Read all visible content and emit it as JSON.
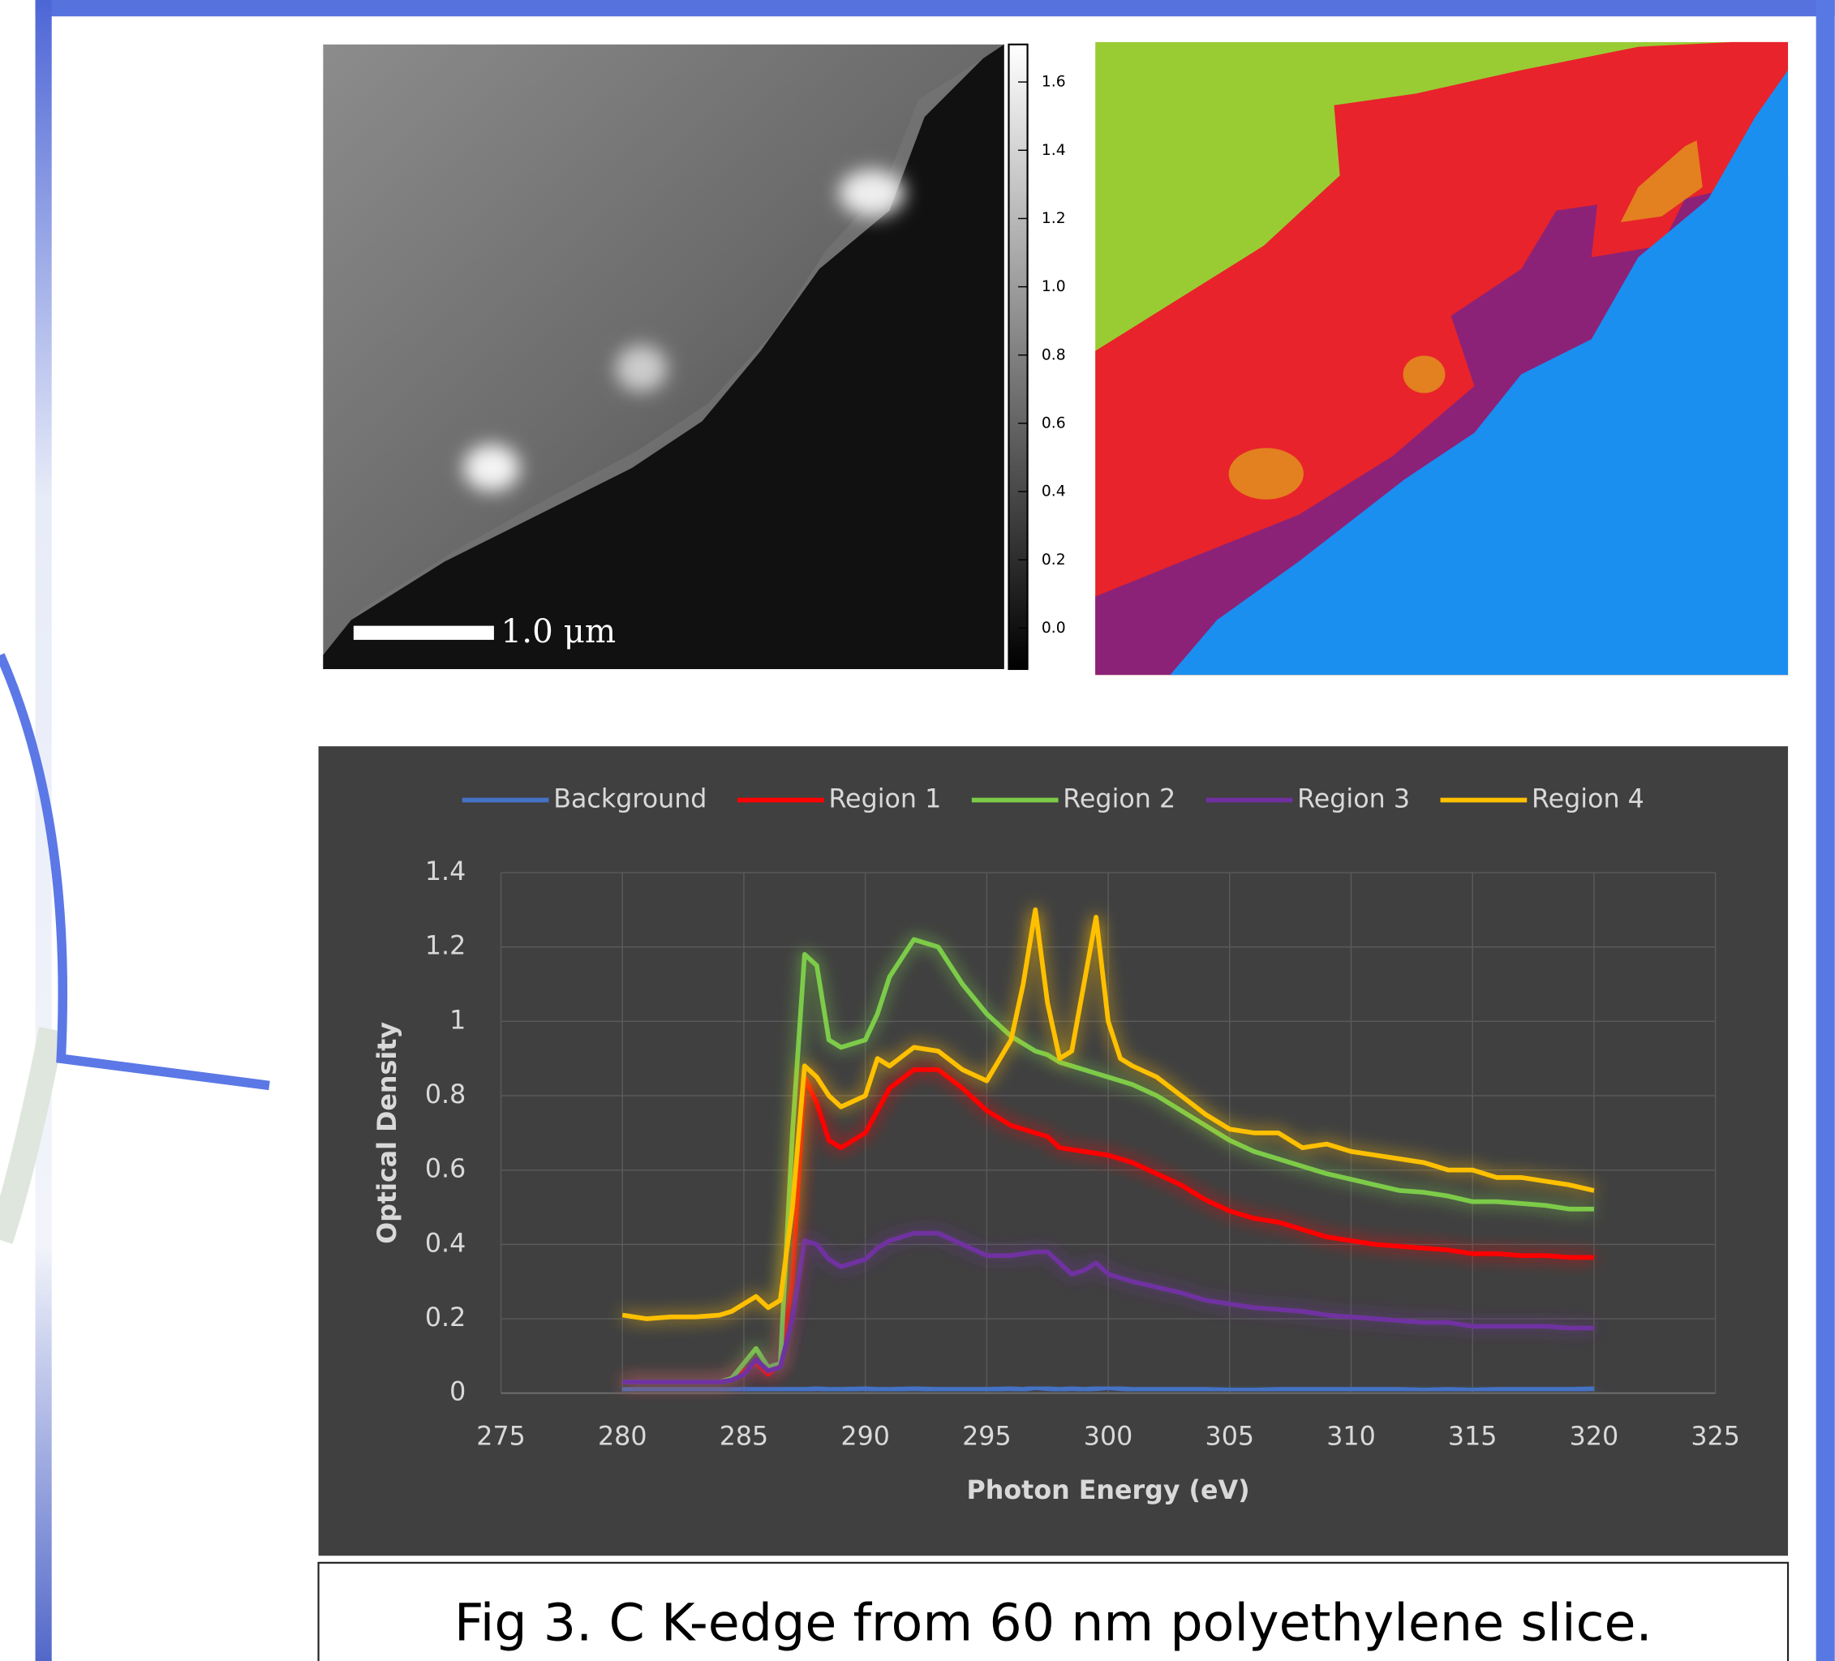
{
  "colorbar": {
    "lim": [
      -0.12,
      1.71
    ],
    "ticks": [
      1.6,
      1.4,
      1.2,
      {
        "value": 1.0,
        "label": "1.0"
      },
      0.8,
      0.6,
      0.4,
      0.2,
      {
        "value": 0.0,
        "label": "0.0"
      }
    ]
  },
  "scale_bar": {
    "label": "1.0 μm"
  },
  "caption": "Fig 3. C K-edge from 60 nm polyethylene slice.",
  "chart_data": {
    "type": "line",
    "xlabel": "Photon Energy (eV)",
    "ylabel": "Optical Density",
    "xlim": [
      275,
      325
    ],
    "ylim": [
      0,
      1.4
    ],
    "xticks": [
      275,
      280,
      285,
      290,
      295,
      300,
      305,
      310,
      315,
      320,
      325
    ],
    "yticks": [
      0,
      0.2,
      0.4,
      0.6,
      0.8,
      1,
      1.2,
      1.4
    ],
    "grid": true,
    "legend": "top",
    "x": [
      280,
      281,
      282,
      283,
      284,
      284.5,
      285,
      285.5,
      286,
      286.5,
      287,
      287.5,
      288,
      288.5,
      289,
      290,
      290.5,
      291,
      292,
      293,
      294,
      295,
      296,
      296.5,
      297,
      297.5,
      298,
      298.5,
      299,
      299.5,
      300,
      300.5,
      301,
      302,
      303,
      304,
      305,
      306,
      307,
      308,
      309,
      310,
      311,
      312,
      313,
      314,
      315,
      316,
      317,
      318,
      319,
      320
    ],
    "series": [
      {
        "name": "Background",
        "color": "#4472c4",
        "values": [
          0.01,
          0.01,
          0.01,
          0.01,
          0.01,
          0.01,
          0.01,
          0.01,
          0.01,
          0.01,
          0.01,
          0.01,
          0.012,
          0.01,
          0.01,
          0.012,
          0.01,
          0.01,
          0.012,
          0.01,
          0.01,
          0.01,
          0.012,
          0.01,
          0.015,
          0.012,
          0.01,
          0.012,
          0.01,
          0.012,
          0.015,
          0.012,
          0.01,
          0.01,
          0.01,
          0.01,
          0.008,
          0.008,
          0.01,
          0.01,
          0.01,
          0.01,
          0.01,
          0.01,
          0.008,
          0.01,
          0.008,
          0.01,
          0.01,
          0.01,
          0.01,
          0.012
        ]
      },
      {
        "name": "Region 1",
        "color": "#ff0000",
        "values": [
          0.03,
          0.03,
          0.03,
          0.03,
          0.03,
          0.04,
          0.06,
          0.08,
          0.05,
          0.08,
          0.3,
          0.85,
          0.78,
          0.68,
          0.66,
          0.7,
          0.76,
          0.82,
          0.87,
          0.87,
          0.82,
          0.76,
          0.72,
          0.71,
          0.7,
          0.69,
          0.66,
          0.655,
          0.65,
          0.645,
          0.64,
          0.63,
          0.62,
          0.59,
          0.56,
          0.52,
          0.49,
          0.47,
          0.46,
          0.44,
          0.42,
          0.41,
          0.4,
          0.395,
          0.39,
          0.385,
          0.375,
          0.375,
          0.37,
          0.37,
          0.365,
          0.365
        ]
      },
      {
        "name": "Region 2",
        "color": "#7ccb48",
        "values": [
          0.03,
          0.03,
          0.03,
          0.03,
          0.03,
          0.04,
          0.08,
          0.12,
          0.07,
          0.08,
          0.7,
          1.18,
          1.15,
          0.95,
          0.93,
          0.95,
          1.02,
          1.12,
          1.22,
          1.2,
          1.1,
          1.02,
          0.96,
          0.94,
          0.92,
          0.91,
          0.89,
          0.88,
          0.87,
          0.86,
          0.85,
          0.84,
          0.83,
          0.8,
          0.76,
          0.72,
          0.68,
          0.65,
          0.63,
          0.61,
          0.59,
          0.575,
          0.56,
          0.545,
          0.54,
          0.53,
          0.515,
          0.515,
          0.51,
          0.505,
          0.495,
          0.495
        ]
      },
      {
        "name": "Region 3",
        "color": "#7030a0",
        "values": [
          0.03,
          0.03,
          0.03,
          0.03,
          0.03,
          0.035,
          0.05,
          0.09,
          0.06,
          0.07,
          0.2,
          0.41,
          0.4,
          0.36,
          0.34,
          0.36,
          0.39,
          0.41,
          0.43,
          0.43,
          0.4,
          0.37,
          0.37,
          0.375,
          0.38,
          0.38,
          0.35,
          0.32,
          0.33,
          0.35,
          0.32,
          0.31,
          0.3,
          0.285,
          0.27,
          0.25,
          0.24,
          0.23,
          0.225,
          0.22,
          0.21,
          0.205,
          0.2,
          0.195,
          0.19,
          0.19,
          0.18,
          0.18,
          0.18,
          0.18,
          0.175,
          0.175
        ]
      },
      {
        "name": "Region 4",
        "color": "#ffc000",
        "values": [
          0.21,
          0.2,
          0.205,
          0.205,
          0.21,
          0.22,
          0.24,
          0.26,
          0.23,
          0.25,
          0.5,
          0.88,
          0.85,
          0.8,
          0.77,
          0.8,
          0.9,
          0.88,
          0.93,
          0.92,
          0.87,
          0.84,
          0.95,
          1.1,
          1.3,
          1.05,
          0.9,
          0.92,
          1.1,
          1.28,
          1.0,
          0.9,
          0.88,
          0.85,
          0.8,
          0.75,
          0.71,
          0.7,
          0.7,
          0.66,
          0.67,
          0.65,
          0.64,
          0.63,
          0.62,
          0.6,
          0.6,
          0.58,
          0.58,
          0.57,
          0.56,
          0.545
        ]
      }
    ]
  }
}
